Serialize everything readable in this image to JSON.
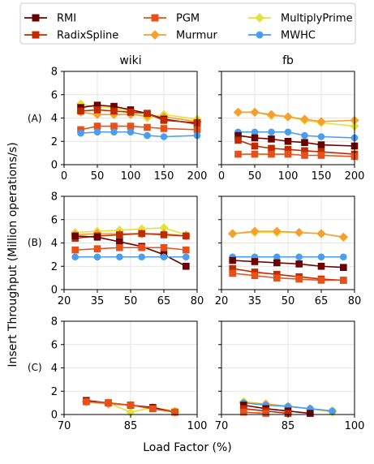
{
  "legend": {
    "columns": [
      [
        "RMI",
        "RadixSpline"
      ],
      [
        "PGM",
        "Murmur"
      ],
      [
        "MultiplyPrime",
        "MWHC"
      ]
    ]
  },
  "colors": {
    "RMI": "#6b0000",
    "RadixSpline": "#c22a00",
    "PGM": "#e8501a",
    "Murmur": "#f4a030",
    "MultiplyPrime": "#e2e23a",
    "MWHC": "#4a9ef0"
  },
  "markers": {
    "RMI": "square",
    "RadixSpline": "square",
    "PGM": "square",
    "Murmur": "diamond",
    "MultiplyPrime": "diamond",
    "MWHC": "circle"
  },
  "ylabel": "Insert Throughput (Million operations/s)",
  "xlabel": "Load Factor (%)",
  "col_titles": [
    "wiki",
    "fb"
  ],
  "row_labels": [
    "(A)",
    "(B)",
    "(C)"
  ],
  "chart_data": [
    {
      "type": "line",
      "row": 0,
      "col": 0,
      "xlim": [
        0,
        200
      ],
      "ylim": [
        0,
        8
      ],
      "xticks": [
        0,
        50,
        100,
        150,
        200
      ],
      "xtick_labels": [
        "0",
        "50",
        "100",
        "150",
        "200"
      ],
      "yticks": [
        0,
        2,
        4,
        6,
        8
      ],
      "ytick_labels": [
        "0",
        "2",
        "4",
        "6",
        "8"
      ],
      "series": [
        {
          "name": "MultiplyPrime",
          "x": [
            25,
            50,
            75,
            100,
            125,
            150,
            200
          ],
          "y": [
            5.2,
            4.9,
            4.9,
            4.5,
            4.0,
            4.3,
            3.9
          ]
        },
        {
          "name": "Murmur",
          "x": [
            25,
            50,
            75,
            100,
            125,
            150,
            200
          ],
          "y": [
            4.5,
            4.3,
            4.3,
            4.3,
            4.2,
            4.1,
            3.7
          ]
        },
        {
          "name": "RMI",
          "x": [
            25,
            50,
            75,
            100,
            125,
            150,
            200
          ],
          "y": [
            4.9,
            5.1,
            5.0,
            4.7,
            4.4,
            3.9,
            3.5
          ]
        },
        {
          "name": "RadixSpline",
          "x": [
            25,
            50,
            75,
            100,
            125,
            150,
            200
          ],
          "y": [
            4.6,
            4.7,
            4.6,
            4.5,
            4.4,
            3.8,
            3.6
          ]
        },
        {
          "name": "PGM",
          "x": [
            25,
            50,
            75,
            100,
            125,
            150,
            200
          ],
          "y": [
            3.0,
            3.3,
            3.3,
            3.3,
            3.2,
            3.1,
            3.0
          ]
        },
        {
          "name": "MWHC",
          "x": [
            25,
            50,
            75,
            100,
            125,
            150,
            200
          ],
          "y": [
            2.7,
            2.8,
            2.8,
            2.8,
            2.5,
            2.4,
            2.5
          ]
        }
      ]
    },
    {
      "type": "line",
      "row": 0,
      "col": 1,
      "xlim": [
        0,
        200
      ],
      "ylim": [
        0,
        8
      ],
      "xticks": [
        0,
        50,
        100,
        150,
        200
      ],
      "xtick_labels": [
        "0",
        "50",
        "100",
        "150",
        "200"
      ],
      "yticks": [
        0,
        2,
        4,
        6,
        8
      ],
      "ytick_labels": [],
      "series": [
        {
          "name": "MultiplyPrime",
          "x": [
            25,
            50,
            75,
            100,
            125,
            150,
            200
          ],
          "y": [
            4.5,
            4.5,
            4.2,
            4.1,
            3.8,
            3.6,
            3.3
          ]
        },
        {
          "name": "Murmur",
          "x": [
            25,
            50,
            75,
            100,
            125,
            150,
            200
          ],
          "y": [
            4.5,
            4.5,
            4.3,
            4.1,
            3.9,
            3.7,
            3.8
          ]
        },
        {
          "name": "MWHC",
          "x": [
            25,
            50,
            75,
            100,
            125,
            150,
            200
          ],
          "y": [
            2.8,
            2.8,
            2.8,
            2.8,
            2.5,
            2.4,
            2.3
          ]
        },
        {
          "name": "RMI",
          "x": [
            25,
            50,
            75,
            100,
            125,
            150,
            200
          ],
          "y": [
            2.5,
            2.3,
            2.2,
            2.0,
            1.9,
            1.7,
            1.6
          ]
        },
        {
          "name": "RadixSpline",
          "x": [
            25,
            50,
            75,
            100,
            125,
            150,
            200
          ],
          "y": [
            2.1,
            1.6,
            1.4,
            1.3,
            1.2,
            1.1,
            0.9
          ]
        },
        {
          "name": "PGM",
          "x": [
            25,
            50,
            75,
            100,
            125,
            150,
            200
          ],
          "y": [
            0.9,
            0.9,
            0.9,
            0.9,
            0.8,
            0.8,
            0.7
          ]
        }
      ]
    },
    {
      "type": "line",
      "row": 1,
      "col": 0,
      "xlim": [
        20,
        80
      ],
      "ylim": [
        0,
        8
      ],
      "xticks": [
        20,
        35,
        50,
        65,
        80
      ],
      "xtick_labels": [
        "20",
        "35",
        "50",
        "65",
        "80"
      ],
      "yticks": [
        0,
        2,
        4,
        6,
        8
      ],
      "ytick_labels": [
        "0",
        "2",
        "4",
        "6",
        "8"
      ],
      "series": [
        {
          "name": "MultiplyPrime",
          "x": [
            25,
            35,
            45,
            55,
            65,
            75
          ],
          "y": [
            4.9,
            5.0,
            5.1,
            5.2,
            5.3,
            4.7
          ]
        },
        {
          "name": "Murmur",
          "x": [
            25,
            35,
            45,
            55,
            65,
            75
          ],
          "y": [
            4.7,
            4.8,
            4.8,
            4.8,
            4.8,
            4.6
          ]
        },
        {
          "name": "RadixSpline",
          "x": [
            25,
            35,
            45,
            55,
            65,
            75
          ],
          "y": [
            4.4,
            4.6,
            4.7,
            4.8,
            4.7,
            4.6
          ]
        },
        {
          "name": "RMI",
          "x": [
            25,
            35,
            45,
            55,
            65,
            75
          ],
          "y": [
            4.6,
            4.5,
            4.1,
            3.7,
            3.0,
            2.0
          ]
        },
        {
          "name": "PGM",
          "x": [
            25,
            35,
            45,
            55,
            65,
            75
          ],
          "y": [
            3.4,
            3.5,
            3.6,
            3.6,
            3.6,
            3.4
          ]
        },
        {
          "name": "MWHC",
          "x": [
            25,
            35,
            45,
            55,
            65,
            75
          ],
          "y": [
            2.8,
            2.8,
            2.8,
            2.8,
            2.8,
            2.8
          ]
        }
      ]
    },
    {
      "type": "line",
      "row": 1,
      "col": 1,
      "xlim": [
        20,
        80
      ],
      "ylim": [
        0,
        8
      ],
      "xticks": [
        20,
        35,
        50,
        65,
        80
      ],
      "xtick_labels": [
        "20",
        "35",
        "50",
        "65",
        "80"
      ],
      "yticks": [
        0,
        2,
        4,
        6,
        8
      ],
      "ytick_labels": [],
      "series": [
        {
          "name": "MultiplyPrime",
          "x": [
            25,
            35,
            45,
            55,
            65,
            75
          ],
          "y": [
            4.8,
            4.9,
            4.9,
            4.9,
            4.8,
            4.5
          ]
        },
        {
          "name": "Murmur",
          "x": [
            25,
            35,
            45,
            55,
            65,
            75
          ],
          "y": [
            4.8,
            5.0,
            5.0,
            4.9,
            4.8,
            4.5
          ]
        },
        {
          "name": "MWHC",
          "x": [
            25,
            35,
            45,
            55,
            65,
            75
          ],
          "y": [
            2.8,
            2.8,
            2.8,
            2.8,
            2.8,
            2.8
          ]
        },
        {
          "name": "RMI",
          "x": [
            25,
            35,
            45,
            55,
            65,
            75
          ],
          "y": [
            2.5,
            2.4,
            2.3,
            2.2,
            2.0,
            1.9
          ]
        },
        {
          "name": "RadixSpline",
          "x": [
            25,
            35,
            45,
            55,
            65,
            75
          ],
          "y": [
            1.8,
            1.5,
            1.3,
            1.1,
            0.9,
            0.8
          ]
        },
        {
          "name": "PGM",
          "x": [
            25,
            35,
            45,
            55,
            65,
            75
          ],
          "y": [
            1.4,
            1.2,
            1.0,
            0.9,
            0.8,
            0.8
          ]
        }
      ]
    },
    {
      "type": "line",
      "row": 2,
      "col": 0,
      "xlim": [
        70,
        100
      ],
      "ylim": [
        0,
        8
      ],
      "xticks": [
        70,
        85,
        100
      ],
      "xtick_labels": [
        "70",
        "85",
        "100"
      ],
      "yticks": [
        0,
        2,
        4,
        6,
        8
      ],
      "ytick_labels": [
        "0",
        "2",
        "4",
        "6",
        "8"
      ],
      "series": [
        {
          "name": "MultiplyPrime",
          "x": [
            75,
            80,
            85,
            90,
            95
          ],
          "y": [
            1.1,
            1.0,
            0.2,
            0.6,
            0.3
          ]
        },
        {
          "name": "Murmur",
          "x": [
            75,
            80,
            85,
            90,
            95
          ],
          "y": [
            1.1,
            0.9,
            0.8,
            0.6,
            0.2
          ]
        },
        {
          "name": "RMI",
          "x": [
            75,
            80,
            85,
            90,
            95
          ],
          "y": [
            1.2,
            1.0,
            0.8,
            0.6,
            0.2
          ]
        },
        {
          "name": "RadixSpline",
          "x": [
            75,
            80,
            85,
            90,
            95
          ],
          "y": [
            1.1,
            1.0,
            0.8,
            0.5,
            0.2
          ]
        },
        {
          "name": "PGM",
          "x": [
            75,
            80,
            85,
            90,
            95
          ],
          "y": [
            1.1,
            1.0,
            0.8,
            0.5,
            0.2
          ]
        }
      ]
    },
    {
      "type": "line",
      "row": 2,
      "col": 1,
      "xlim": [
        70,
        100
      ],
      "ylim": [
        0,
        8
      ],
      "xticks": [
        70,
        85,
        100
      ],
      "xtick_labels": [
        "70",
        "85",
        "100"
      ],
      "yticks": [
        0,
        2,
        4,
        6,
        8
      ],
      "ytick_labels": [],
      "series": [
        {
          "name": "MultiplyPrime",
          "x": [
            75,
            80,
            85,
            90,
            95
          ],
          "y": [
            1.1,
            0.9,
            0.7,
            0.5,
            0.2
          ]
        },
        {
          "name": "Murmur",
          "x": [
            75,
            80,
            85,
            90,
            95
          ],
          "y": [
            1.0,
            0.9,
            0.7,
            0.5,
            0.3
          ]
        },
        {
          "name": "MWHC",
          "x": [
            75,
            80,
            85,
            90,
            95
          ],
          "y": [
            1.0,
            0.8,
            0.7,
            0.5,
            0.3
          ]
        },
        {
          "name": "RMI",
          "x": [
            75,
            80,
            85,
            90
          ],
          "y": [
            0.8,
            0.5,
            0.3,
            0.1
          ]
        },
        {
          "name": "RadixSpline",
          "x": [
            75,
            80,
            85
          ],
          "y": [
            0.5,
            0.3,
            0.1
          ]
        },
        {
          "name": "PGM",
          "x": [
            75,
            80
          ],
          "y": [
            0.2,
            0.1
          ]
        }
      ]
    }
  ]
}
